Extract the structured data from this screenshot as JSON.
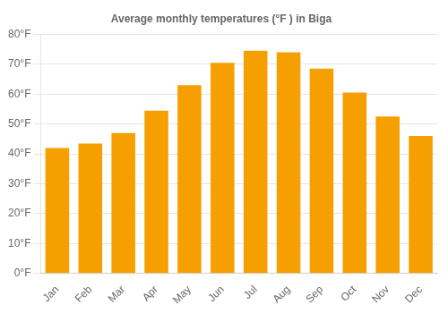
{
  "chart_data": {
    "type": "bar",
    "title": "Average monthly temperatures (°F ) in Biga",
    "categories": [
      "Jan",
      "Feb",
      "Mar",
      "Apr",
      "May",
      "Jun",
      "Jul",
      "Aug",
      "Sep",
      "Oct",
      "Nov",
      "Dec"
    ],
    "values": [
      42,
      43.5,
      47,
      54.5,
      63,
      70.5,
      74.5,
      74,
      68.5,
      60.5,
      52.5,
      46
    ],
    "color": "#F5A000",
    "ylim": [
      0,
      80
    ],
    "yticks": [
      {
        "value": 0,
        "label": "0°F"
      },
      {
        "value": 10,
        "label": "10°F"
      },
      {
        "value": 20,
        "label": "20°F"
      },
      {
        "value": 30,
        "label": "30°F"
      },
      {
        "value": 40,
        "label": "40°F"
      },
      {
        "value": 50,
        "label": "50°F"
      },
      {
        "value": 60,
        "label": "60°F"
      },
      {
        "value": 70,
        "label": "70°F"
      },
      {
        "value": 80,
        "label": "80°F"
      }
    ],
    "grid": true
  }
}
